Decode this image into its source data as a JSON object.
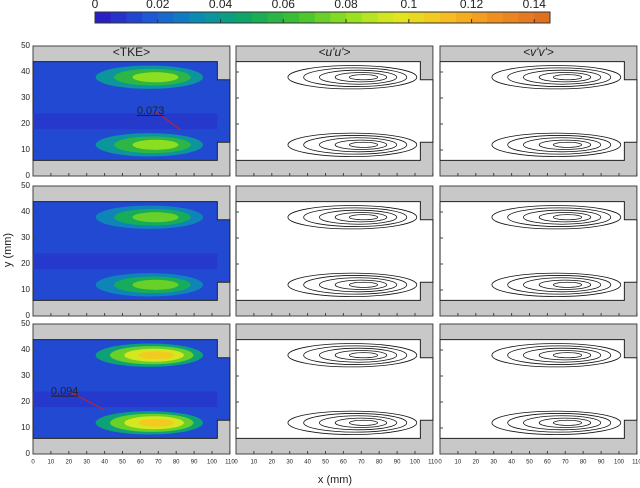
{
  "chart_data": {
    "type": "contour",
    "colorbar": {
      "lim": [
        0,
        0.145
      ],
      "ticks": [
        0,
        0.02,
        0.04,
        0.06,
        0.08,
        0.1,
        0.12,
        0.14
      ],
      "colormap": [
        "#2a1fc4",
        "#1e5ad8",
        "#0a8fb0",
        "#10a860",
        "#40c030",
        "#90e020",
        "#e0e820",
        "#f8c020",
        "#f09020",
        "#e07020"
      ]
    },
    "column_titles": [
      "<TKE>",
      "<u'u'>",
      "<v'v'>"
    ],
    "xlabel": "x (mm)",
    "ylabel": "y (mm)",
    "xlim": [
      0,
      110
    ],
    "xticks": [
      0,
      10,
      20,
      30,
      40,
      50,
      60,
      70,
      80,
      90,
      100,
      110
    ],
    "ylim": [
      0,
      50
    ],
    "yticks": [
      0,
      10,
      20,
      30,
      40,
      50
    ],
    "annotations": [
      0.073,
      0.094
    ]
  }
}
